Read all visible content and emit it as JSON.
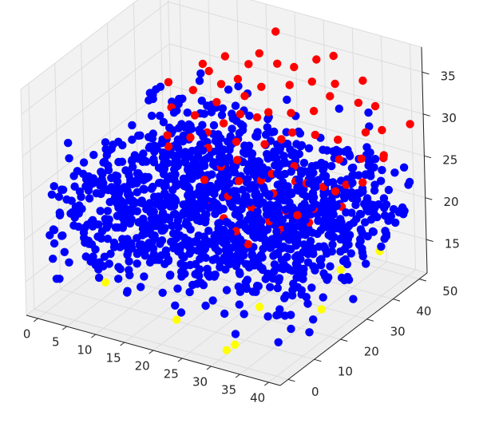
{
  "chart_data": {
    "type": "scatter",
    "projection": "3d",
    "title": "",
    "xlabel": "",
    "ylabel": "",
    "zlabel": "",
    "xlim": [
      -2,
      42
    ],
    "ylim": [
      -3,
      53
    ],
    "zlim": [
      11,
      38
    ],
    "x_ticks": [
      "0",
      "5",
      "10",
      "15",
      "20",
      "25",
      "30",
      "35",
      "40"
    ],
    "y_ticks": [
      "0",
      "10",
      "20",
      "30",
      "40",
      "50"
    ],
    "z_ticks": [
      "15",
      "20",
      "25",
      "30",
      "35"
    ],
    "grid": true,
    "legend": "none",
    "colors": {
      "low": "#ffff00",
      "mid": "#0000ff",
      "high": "#ff0000",
      "pane": "#f2f2f2",
      "grid": "#dcdcdc"
    },
    "series": [
      {
        "color": "#ffff00",
        "points": [
          [
            4,
            14,
            12.0
          ],
          [
            20,
            6,
            12.5
          ],
          [
            30,
            3,
            11.5
          ],
          [
            28,
            20,
            12.2
          ],
          [
            33,
            40,
            12.8
          ],
          [
            38,
            44,
            15.0
          ],
          [
            31,
            4,
            12.1
          ],
          [
            36,
            26,
            12.0
          ]
        ]
      },
      {
        "color": "#ff0000",
        "points": [
          [
            0,
            48,
            27.0
          ],
          [
            8,
            40,
            29.5
          ],
          [
            18,
            50,
            36.0
          ],
          [
            10,
            48,
            32.0
          ],
          [
            14,
            44,
            31.0
          ],
          [
            20,
            46,
            33.5
          ],
          [
            22,
            48,
            33.0
          ],
          [
            25,
            40,
            30.0
          ],
          [
            28,
            50,
            35.0
          ],
          [
            30,
            44,
            32.0
          ],
          [
            33,
            50,
            33.0
          ],
          [
            36,
            48,
            31.0
          ],
          [
            38,
            46,
            29.0
          ],
          [
            40,
            42,
            27.0
          ],
          [
            42,
            48,
            30.0
          ],
          [
            12,
            30,
            27.0
          ],
          [
            16,
            34,
            28.5
          ],
          [
            20,
            30,
            28.0
          ],
          [
            24,
            32,
            28.0
          ],
          [
            27,
            36,
            29.0
          ],
          [
            30,
            30,
            27.0
          ],
          [
            33,
            28,
            26.0
          ],
          [
            36,
            34,
            28.0
          ],
          [
            6,
            36,
            28.0
          ],
          [
            9,
            44,
            31.0
          ],
          [
            17,
            40,
            30.5
          ],
          [
            22,
            38,
            30.0
          ],
          [
            26,
            26,
            25.5
          ],
          [
            29,
            24,
            25.0
          ],
          [
            32,
            22,
            24.0
          ],
          [
            35,
            30,
            25.5
          ],
          [
            38,
            38,
            27.5
          ],
          [
            40,
            34,
            26.0
          ],
          [
            14,
            20,
            24.0
          ],
          [
            18,
            22,
            25.0
          ],
          [
            21,
            18,
            23.5
          ],
          [
            24,
            16,
            23.0
          ],
          [
            27,
            14,
            22.5
          ],
          [
            30,
            12,
            22.0
          ],
          [
            34,
            16,
            23.5
          ],
          [
            37,
            20,
            24.0
          ],
          [
            40,
            26,
            25.0
          ],
          [
            10,
            26,
            26.5
          ],
          [
            13,
            38,
            29.5
          ],
          [
            15,
            46,
            32.5
          ],
          [
            19,
            42,
            31.5
          ],
          [
            23,
            44,
            32.0
          ],
          [
            26,
            46,
            32.5
          ],
          [
            29,
            40,
            31.0
          ],
          [
            31,
            36,
            29.5
          ],
          [
            34,
            38,
            29.0
          ],
          [
            37,
            42,
            29.5
          ],
          [
            39,
            30,
            26.5
          ],
          [
            24,
            22,
            26.0
          ],
          [
            20,
            24,
            26.5
          ],
          [
            16,
            28,
            27.0
          ],
          [
            28,
            18,
            24.5
          ],
          [
            32,
            26,
            26.5
          ],
          [
            35,
            20,
            24.5
          ],
          [
            41,
            40,
            28.0
          ],
          [
            11,
            34,
            28.5
          ],
          [
            8,
            30,
            26.5
          ],
          [
            18,
            36,
            29.5
          ],
          [
            26,
            34,
            28.5
          ],
          [
            21,
            28,
            26.5
          ],
          [
            30,
            46,
            33.0
          ],
          [
            12,
            42,
            30.5
          ],
          [
            16,
            48,
            33.5
          ],
          [
            25,
            50,
            34.0
          ],
          [
            34,
            46,
            31.5
          ],
          [
            23,
            20,
            24.5
          ],
          [
            27,
            28,
            26.0
          ],
          [
            31,
            18,
            23.5
          ],
          [
            36,
            24,
            24.5
          ],
          [
            20,
            38,
            29.0
          ],
          [
            14,
            32,
            27.5
          ],
          [
            38,
            28,
            26.0
          ],
          [
            7,
            46,
            31.0
          ]
        ]
      },
      {
        "color": "#0000ff",
        "points": []
      }
    ],
    "bulk_cloud": {
      "color": "#0000ff",
      "count": 1400,
      "x_range": [
        0,
        42
      ],
      "y_range": [
        0,
        50
      ],
      "z_range": [
        13,
        30
      ]
    }
  }
}
